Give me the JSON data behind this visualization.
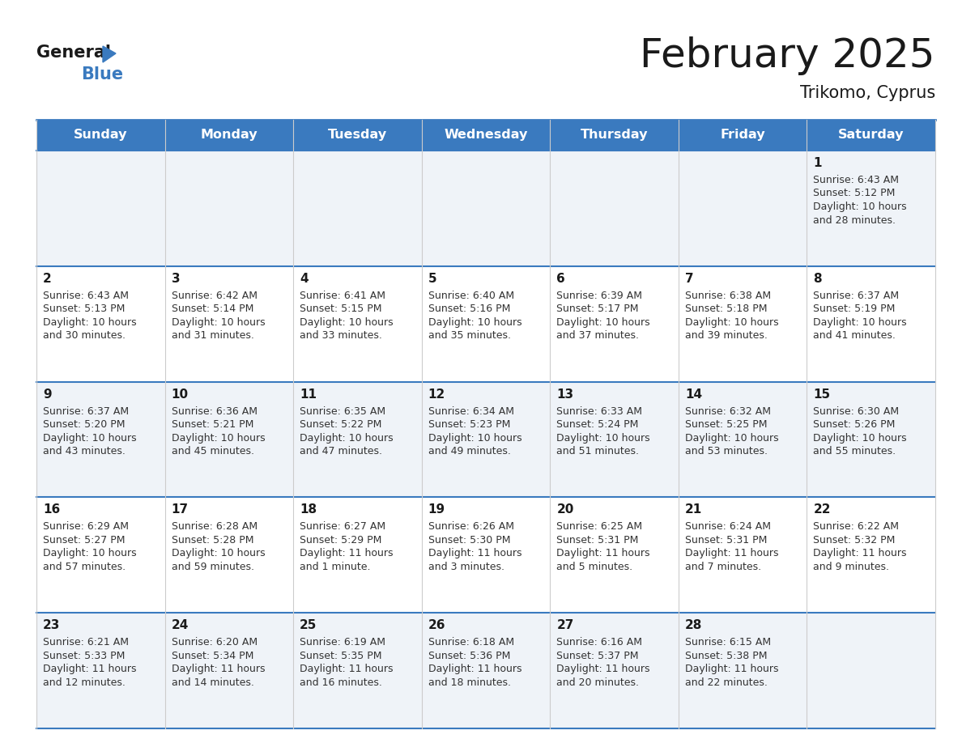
{
  "title": "February 2025",
  "subtitle": "Trikomo, Cyprus",
  "header_color": "#3a7abf",
  "header_text_color": "#ffffff",
  "days_of_week": [
    "Sunday",
    "Monday",
    "Tuesday",
    "Wednesday",
    "Thursday",
    "Friday",
    "Saturday"
  ],
  "border_color": "#3a7abf",
  "cell_bg_light": "#eff3f8",
  "cell_bg_white": "#ffffff",
  "calendar_data": [
    [
      null,
      null,
      null,
      null,
      null,
      null,
      {
        "day": "1",
        "sunrise": "6:43 AM",
        "sunset": "5:12 PM",
        "daylight_l1": "Daylight: 10 hours",
        "daylight_l2": "and 28 minutes."
      }
    ],
    [
      {
        "day": "2",
        "sunrise": "6:43 AM",
        "sunset": "5:13 PM",
        "daylight_l1": "Daylight: 10 hours",
        "daylight_l2": "and 30 minutes."
      },
      {
        "day": "3",
        "sunrise": "6:42 AM",
        "sunset": "5:14 PM",
        "daylight_l1": "Daylight: 10 hours",
        "daylight_l2": "and 31 minutes."
      },
      {
        "day": "4",
        "sunrise": "6:41 AM",
        "sunset": "5:15 PM",
        "daylight_l1": "Daylight: 10 hours",
        "daylight_l2": "and 33 minutes."
      },
      {
        "day": "5",
        "sunrise": "6:40 AM",
        "sunset": "5:16 PM",
        "daylight_l1": "Daylight: 10 hours",
        "daylight_l2": "and 35 minutes."
      },
      {
        "day": "6",
        "sunrise": "6:39 AM",
        "sunset": "5:17 PM",
        "daylight_l1": "Daylight: 10 hours",
        "daylight_l2": "and 37 minutes."
      },
      {
        "day": "7",
        "sunrise": "6:38 AM",
        "sunset": "5:18 PM",
        "daylight_l1": "Daylight: 10 hours",
        "daylight_l2": "and 39 minutes."
      },
      {
        "day": "8",
        "sunrise": "6:37 AM",
        "sunset": "5:19 PM",
        "daylight_l1": "Daylight: 10 hours",
        "daylight_l2": "and 41 minutes."
      }
    ],
    [
      {
        "day": "9",
        "sunrise": "6:37 AM",
        "sunset": "5:20 PM",
        "daylight_l1": "Daylight: 10 hours",
        "daylight_l2": "and 43 minutes."
      },
      {
        "day": "10",
        "sunrise": "6:36 AM",
        "sunset": "5:21 PM",
        "daylight_l1": "Daylight: 10 hours",
        "daylight_l2": "and 45 minutes."
      },
      {
        "day": "11",
        "sunrise": "6:35 AM",
        "sunset": "5:22 PM",
        "daylight_l1": "Daylight: 10 hours",
        "daylight_l2": "and 47 minutes."
      },
      {
        "day": "12",
        "sunrise": "6:34 AM",
        "sunset": "5:23 PM",
        "daylight_l1": "Daylight: 10 hours",
        "daylight_l2": "and 49 minutes."
      },
      {
        "day": "13",
        "sunrise": "6:33 AM",
        "sunset": "5:24 PM",
        "daylight_l1": "Daylight: 10 hours",
        "daylight_l2": "and 51 minutes."
      },
      {
        "day": "14",
        "sunrise": "6:32 AM",
        "sunset": "5:25 PM",
        "daylight_l1": "Daylight: 10 hours",
        "daylight_l2": "and 53 minutes."
      },
      {
        "day": "15",
        "sunrise": "6:30 AM",
        "sunset": "5:26 PM",
        "daylight_l1": "Daylight: 10 hours",
        "daylight_l2": "and 55 minutes."
      }
    ],
    [
      {
        "day": "16",
        "sunrise": "6:29 AM",
        "sunset": "5:27 PM",
        "daylight_l1": "Daylight: 10 hours",
        "daylight_l2": "and 57 minutes."
      },
      {
        "day": "17",
        "sunrise": "6:28 AM",
        "sunset": "5:28 PM",
        "daylight_l1": "Daylight: 10 hours",
        "daylight_l2": "and 59 minutes."
      },
      {
        "day": "18",
        "sunrise": "6:27 AM",
        "sunset": "5:29 PM",
        "daylight_l1": "Daylight: 11 hours",
        "daylight_l2": "and 1 minute."
      },
      {
        "day": "19",
        "sunrise": "6:26 AM",
        "sunset": "5:30 PM",
        "daylight_l1": "Daylight: 11 hours",
        "daylight_l2": "and 3 minutes."
      },
      {
        "day": "20",
        "sunrise": "6:25 AM",
        "sunset": "5:31 PM",
        "daylight_l1": "Daylight: 11 hours",
        "daylight_l2": "and 5 minutes."
      },
      {
        "day": "21",
        "sunrise": "6:24 AM",
        "sunset": "5:31 PM",
        "daylight_l1": "Daylight: 11 hours",
        "daylight_l2": "and 7 minutes."
      },
      {
        "day": "22",
        "sunrise": "6:22 AM",
        "sunset": "5:32 PM",
        "daylight_l1": "Daylight: 11 hours",
        "daylight_l2": "and 9 minutes."
      }
    ],
    [
      {
        "day": "23",
        "sunrise": "6:21 AM",
        "sunset": "5:33 PM",
        "daylight_l1": "Daylight: 11 hours",
        "daylight_l2": "and 12 minutes."
      },
      {
        "day": "24",
        "sunrise": "6:20 AM",
        "sunset": "5:34 PM",
        "daylight_l1": "Daylight: 11 hours",
        "daylight_l2": "and 14 minutes."
      },
      {
        "day": "25",
        "sunrise": "6:19 AM",
        "sunset": "5:35 PM",
        "daylight_l1": "Daylight: 11 hours",
        "daylight_l2": "and 16 minutes."
      },
      {
        "day": "26",
        "sunrise": "6:18 AM",
        "sunset": "5:36 PM",
        "daylight_l1": "Daylight: 11 hours",
        "daylight_l2": "and 18 minutes."
      },
      {
        "day": "27",
        "sunrise": "6:16 AM",
        "sunset": "5:37 PM",
        "daylight_l1": "Daylight: 11 hours",
        "daylight_l2": "and 20 minutes."
      },
      {
        "day": "28",
        "sunrise": "6:15 AM",
        "sunset": "5:38 PM",
        "daylight_l1": "Daylight: 11 hours",
        "daylight_l2": "and 22 minutes."
      },
      null
    ]
  ]
}
